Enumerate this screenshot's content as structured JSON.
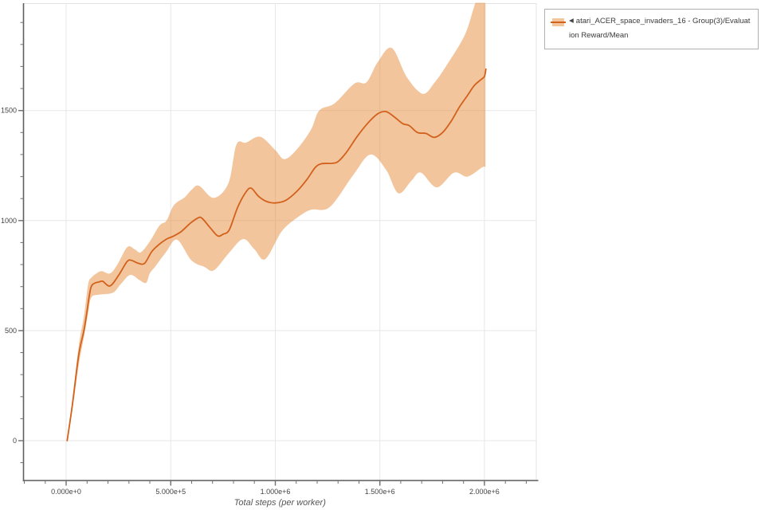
{
  "chart_data": {
    "type": "line",
    "title": "",
    "xlabel": "Total steps (per worker)",
    "ylabel": "",
    "grid": true,
    "x_range": [
      -204000,
      2248000
    ],
    "y_range": [
      -181,
      1984
    ],
    "x_major_ticks": [
      {
        "value": 0,
        "label": "0.000e+0"
      },
      {
        "value": 500000,
        "label": "5.000e+5"
      },
      {
        "value": 1000000,
        "label": "1.000e+6"
      },
      {
        "value": 1500000,
        "label": "1.500e+6"
      },
      {
        "value": 2000000,
        "label": "2.000e+6"
      }
    ],
    "y_major_ticks": [
      {
        "value": 0,
        "label": "0"
      },
      {
        "value": 500,
        "label": "500"
      },
      {
        "value": 1000,
        "label": "1000"
      },
      {
        "value": 1500,
        "label": "1500"
      }
    ],
    "x_minor_step": 100000,
    "y_minor_step": 100,
    "colors": {
      "line": "#d2611c",
      "band_fill": "rgba(229,139,59,0.5)",
      "grid": "#e7e7e7",
      "outline": "#e3e3e3",
      "axis": "#5f5f5f",
      "tick_label": "#444444",
      "axis_label": "#555555"
    },
    "legend": {
      "position": "top-right-outside",
      "pointer_icon": "◀",
      "label": "atari_ACER_space_invaders_16 - Group(3)/Evaluation Reward/Mean"
    },
    "series": [
      {
        "name": "atari_ACER_space_invaders_16 - Group(3)/Evaluation Reward/Mean",
        "mean": [
          [
            5000,
            0
          ],
          [
            30000,
            165
          ],
          [
            60000,
            390
          ],
          [
            85000,
            500
          ],
          [
            100000,
            590
          ],
          [
            110000,
            655
          ],
          [
            120000,
            700
          ],
          [
            135000,
            715
          ],
          [
            160000,
            722
          ],
          [
            175000,
            724
          ],
          [
            210000,
            703
          ],
          [
            250000,
            750
          ],
          [
            290000,
            812
          ],
          [
            310000,
            820
          ],
          [
            345000,
            806
          ],
          [
            375000,
            806
          ],
          [
            410000,
            860
          ],
          [
            445000,
            892
          ],
          [
            480000,
            916
          ],
          [
            510000,
            928
          ],
          [
            550000,
            950
          ],
          [
            590000,
            985
          ],
          [
            630000,
            1012
          ],
          [
            650000,
            1010
          ],
          [
            690000,
            966
          ],
          [
            725000,
            930
          ],
          [
            750000,
            938
          ],
          [
            780000,
            958
          ],
          [
            820000,
            1060
          ],
          [
            860000,
            1130
          ],
          [
            885000,
            1147
          ],
          [
            920000,
            1110
          ],
          [
            960000,
            1086
          ],
          [
            1000000,
            1080
          ],
          [
            1050000,
            1092
          ],
          [
            1100000,
            1130
          ],
          [
            1150000,
            1185
          ],
          [
            1190000,
            1240
          ],
          [
            1220000,
            1258
          ],
          [
            1270000,
            1260
          ],
          [
            1300000,
            1268
          ],
          [
            1340000,
            1310
          ],
          [
            1390000,
            1380
          ],
          [
            1440000,
            1440
          ],
          [
            1490000,
            1485
          ],
          [
            1530000,
            1495
          ],
          [
            1570000,
            1470
          ],
          [
            1610000,
            1440
          ],
          [
            1640000,
            1432
          ],
          [
            1680000,
            1400
          ],
          [
            1720000,
            1396
          ],
          [
            1760000,
            1378
          ],
          [
            1800000,
            1400
          ],
          [
            1840000,
            1450
          ],
          [
            1880000,
            1515
          ],
          [
            1920000,
            1570
          ],
          [
            1950000,
            1612
          ],
          [
            1980000,
            1638
          ],
          [
            2000000,
            1655
          ],
          [
            2007000,
            1688
          ]
        ],
        "band_high": [
          [
            5000,
            0
          ],
          [
            30000,
            185
          ],
          [
            60000,
            430
          ],
          [
            85000,
            565
          ],
          [
            105000,
            710
          ],
          [
            120000,
            740
          ],
          [
            145000,
            760
          ],
          [
            170000,
            770
          ],
          [
            210000,
            760
          ],
          [
            245000,
            800
          ],
          [
            293000,
            880
          ],
          [
            330000,
            868
          ],
          [
            357000,
            856
          ],
          [
            400000,
            905
          ],
          [
            446000,
            977
          ],
          [
            480000,
            1000
          ],
          [
            515000,
            1070
          ],
          [
            566000,
            1105
          ],
          [
            600000,
            1140
          ],
          [
            636000,
            1158
          ],
          [
            706000,
            1103
          ],
          [
            776000,
            1170
          ],
          [
            814000,
            1345
          ],
          [
            860000,
            1354
          ],
          [
            928000,
            1381
          ],
          [
            1000000,
            1320
          ],
          [
            1043000,
            1279
          ],
          [
            1100000,
            1320
          ],
          [
            1170000,
            1412
          ],
          [
            1210000,
            1500
          ],
          [
            1284000,
            1533
          ],
          [
            1379000,
            1623
          ],
          [
            1436000,
            1628
          ],
          [
            1490000,
            1720
          ],
          [
            1557000,
            1784
          ],
          [
            1630000,
            1650
          ],
          [
            1705000,
            1576
          ],
          [
            1760000,
            1625
          ],
          [
            1817000,
            1702
          ],
          [
            1905000,
            1841
          ],
          [
            1950000,
            1970
          ],
          [
            1980000,
            2060
          ],
          [
            2005000,
            2080
          ]
        ],
        "band_low": [
          [
            5000,
            0
          ],
          [
            30000,
            140
          ],
          [
            60000,
            345
          ],
          [
            85000,
            470
          ],
          [
            105000,
            580
          ],
          [
            120000,
            650
          ],
          [
            153000,
            663
          ],
          [
            223000,
            672
          ],
          [
            260000,
            710
          ],
          [
            306000,
            753
          ],
          [
            350000,
            730
          ],
          [
            382000,
            717
          ],
          [
            400000,
            760
          ],
          [
            425000,
            790
          ],
          [
            477000,
            856
          ],
          [
            530000,
            913
          ],
          [
            598000,
            820
          ],
          [
            660000,
            790
          ],
          [
            706000,
            774
          ],
          [
            776000,
            850
          ],
          [
            846000,
            916
          ],
          [
            900000,
            870
          ],
          [
            952000,
            825
          ],
          [
            1030000,
            950
          ],
          [
            1100000,
            1010
          ],
          [
            1170000,
            1049
          ],
          [
            1260000,
            1061
          ],
          [
            1372000,
            1206
          ],
          [
            1455000,
            1300
          ],
          [
            1530000,
            1230
          ],
          [
            1588000,
            1124
          ],
          [
            1650000,
            1180
          ],
          [
            1696000,
            1218
          ],
          [
            1772000,
            1151
          ],
          [
            1855000,
            1218
          ],
          [
            1919000,
            1200
          ],
          [
            1990000,
            1242
          ],
          [
            2005000,
            1243
          ]
        ]
      }
    ]
  }
}
